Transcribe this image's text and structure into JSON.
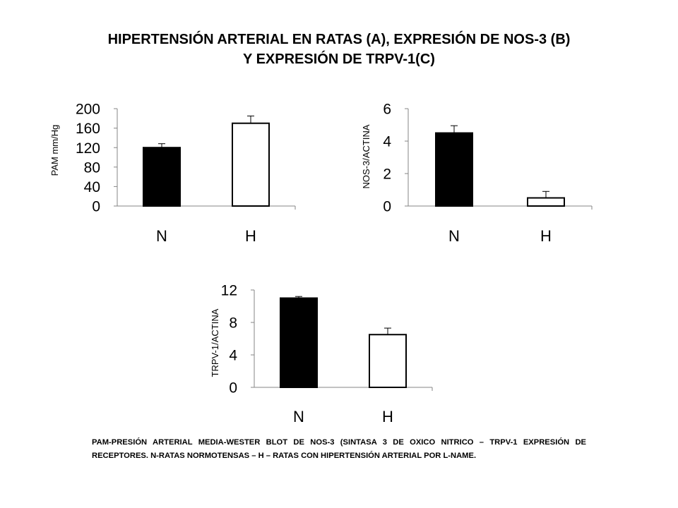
{
  "title": {
    "line1": "HIPERTENSIÓN ARTERIAL EN RATAS (A), EXPRESIÓN DE NOS-3 (B)",
    "line2": "Y EXPRESIÓN DE TRPV-1(C)"
  },
  "caption": "PAM-PRESIÓN ARTERIAL MEDIA-WESTER BLOT DE NOS-3 (SINTASA 3 DE OXICO NITRICO – TRPV-1 EXPRESIÓN DE RECEPTORES. N-RATAS NORMOTENSAS – H – RATAS CON HIPERTENSIÓN ARTERIAL POR L-NAME.",
  "colors": {
    "bar_n": "#000000",
    "bar_h": "#ffffff",
    "stroke": "#000000",
    "axis": "#868686"
  },
  "chart_data": [
    {
      "type": "bar",
      "categories": [
        "N",
        "H"
      ],
      "values": [
        120,
        170
      ],
      "errors": [
        8,
        15
      ],
      "ylabel": "PAM mm/Hg",
      "ylim": [
        0,
        200
      ],
      "yticks": [
        0,
        40,
        80,
        120,
        160,
        200
      ],
      "tick_labels": [
        "0",
        "40",
        "80",
        "120",
        "160",
        "200"
      ]
    },
    {
      "type": "bar",
      "categories": [
        "N",
        "H"
      ],
      "values": [
        4.5,
        0.5
      ],
      "errors": [
        0.45,
        0.4
      ],
      "ylabel": "NOS-3/ACTINA",
      "ylim": [
        0,
        6
      ],
      "yticks": [
        0,
        2,
        4,
        6
      ],
      "tick_labels": [
        "0",
        "2",
        "4",
        "6"
      ]
    },
    {
      "type": "bar",
      "categories": [
        "N",
        "H"
      ],
      "values": [
        11,
        6.5
      ],
      "errors": [
        0.2,
        0.8
      ],
      "ylabel": "TRPV-1/ACTINA",
      "ylim": [
        0,
        12
      ],
      "yticks": [
        0,
        4,
        8,
        12
      ],
      "tick_labels": [
        "0",
        "4",
        "8",
        "12"
      ]
    }
  ]
}
